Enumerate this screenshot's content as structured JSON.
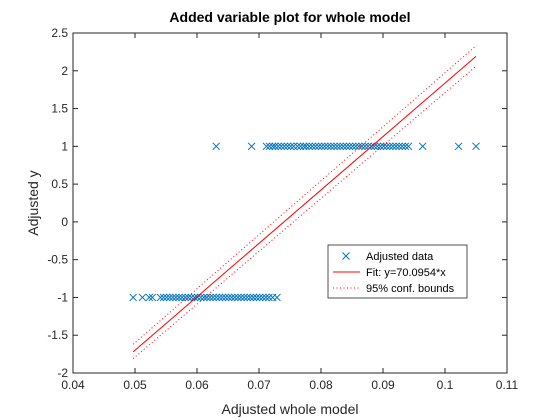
{
  "chart_data": {
    "type": "scatter",
    "title": "Added variable plot for whole model",
    "xlabel": "Adjusted whole model",
    "ylabel": "Adjusted y",
    "xlim": [
      0.04,
      0.11
    ],
    "ylim": [
      -2,
      2.5
    ],
    "xticks": [
      "0.04",
      "0.05",
      "0.06",
      "0.07",
      "0.08",
      "0.09",
      "0.1",
      "0.11"
    ],
    "yticks": [
      "-2",
      "-1.5",
      "-1",
      "-0.5",
      "0",
      "0.5",
      "1",
      "1.5",
      "2",
      "2.5"
    ],
    "grid": false,
    "legend_position": "lower-right",
    "series": [
      {
        "name": "Adjusted data",
        "kind": "scatter",
        "marker": "x",
        "color": "#0072BD",
        "points": [
          [
            0.0631,
            1
          ],
          [
            0.0688,
            1
          ],
          [
            0.0712,
            1
          ],
          [
            0.0717,
            1
          ],
          [
            0.0722,
            1
          ],
          [
            0.0726,
            1
          ],
          [
            0.0731,
            1
          ],
          [
            0.0736,
            1
          ],
          [
            0.0741,
            1
          ],
          [
            0.0746,
            1
          ],
          [
            0.0751,
            1
          ],
          [
            0.0756,
            1
          ],
          [
            0.0762,
            1
          ],
          [
            0.0767,
            1
          ],
          [
            0.0772,
            1
          ],
          [
            0.0776,
            1
          ],
          [
            0.0781,
            1
          ],
          [
            0.0786,
            1
          ],
          [
            0.0791,
            1
          ],
          [
            0.0796,
            1
          ],
          [
            0.0801,
            1
          ],
          [
            0.0806,
            1
          ],
          [
            0.0811,
            1
          ],
          [
            0.0816,
            1
          ],
          [
            0.0821,
            1
          ],
          [
            0.0826,
            1
          ],
          [
            0.0831,
            1
          ],
          [
            0.0836,
            1
          ],
          [
            0.0841,
            1
          ],
          [
            0.0846,
            1
          ],
          [
            0.0851,
            1
          ],
          [
            0.0856,
            1
          ],
          [
            0.0861,
            1
          ],
          [
            0.0866,
            1
          ],
          [
            0.0871,
            1
          ],
          [
            0.0876,
            1
          ],
          [
            0.0881,
            1
          ],
          [
            0.0886,
            1
          ],
          [
            0.0891,
            1
          ],
          [
            0.0896,
            1
          ],
          [
            0.0901,
            1
          ],
          [
            0.0906,
            1
          ],
          [
            0.0911,
            1
          ],
          [
            0.0916,
            1
          ],
          [
            0.0921,
            1
          ],
          [
            0.0926,
            1
          ],
          [
            0.0931,
            1
          ],
          [
            0.0936,
            1
          ],
          [
            0.0941,
            1
          ],
          [
            0.0964,
            1
          ],
          [
            0.1022,
            1
          ],
          [
            0.105,
            1
          ],
          [
            0.0497,
            -1
          ],
          [
            0.0512,
            -1
          ],
          [
            0.0523,
            -1
          ],
          [
            0.0528,
            -1
          ],
          [
            0.0541,
            -1
          ],
          [
            0.0546,
            -1
          ],
          [
            0.0551,
            -1
          ],
          [
            0.0556,
            -1
          ],
          [
            0.0561,
            -1
          ],
          [
            0.0566,
            -1
          ],
          [
            0.0571,
            -1
          ],
          [
            0.0576,
            -1
          ],
          [
            0.0581,
            -1
          ],
          [
            0.0586,
            -1
          ],
          [
            0.0591,
            -1
          ],
          [
            0.0596,
            -1
          ],
          [
            0.0601,
            -1
          ],
          [
            0.0606,
            -1
          ],
          [
            0.0611,
            -1
          ],
          [
            0.0616,
            -1
          ],
          [
            0.0621,
            -1
          ],
          [
            0.0626,
            -1
          ],
          [
            0.0631,
            -1
          ],
          [
            0.0636,
            -1
          ],
          [
            0.0641,
            -1
          ],
          [
            0.0646,
            -1
          ],
          [
            0.0651,
            -1
          ],
          [
            0.0656,
            -1
          ],
          [
            0.0661,
            -1
          ],
          [
            0.0666,
            -1
          ],
          [
            0.0671,
            -1
          ],
          [
            0.0676,
            -1
          ],
          [
            0.0681,
            -1
          ],
          [
            0.0686,
            -1
          ],
          [
            0.0691,
            -1
          ],
          [
            0.0696,
            -1
          ],
          [
            0.0701,
            -1
          ],
          [
            0.0706,
            -1
          ],
          [
            0.0711,
            -1
          ],
          [
            0.0716,
            -1
          ],
          [
            0.0722,
            -1
          ],
          [
            0.0729,
            -1
          ]
        ]
      },
      {
        "name": "Fit: y=70.0954*x",
        "kind": "line",
        "color": "#FF0000",
        "dash": "solid",
        "points": [
          [
            0.0497,
            -1.72
          ],
          [
            0.105,
            2.19
          ]
        ]
      },
      {
        "name": "95% conf. bounds",
        "kind": "line",
        "color": "#FF0000",
        "dash": "dotted",
        "points": [
          [
            0.0497,
            -1.62
          ],
          [
            0.105,
            2.33
          ]
        ]
      },
      {
        "name": "",
        "kind": "line",
        "color": "#FF0000",
        "dash": "dotted",
        "points": [
          [
            0.0497,
            -1.81
          ],
          [
            0.105,
            2.06
          ]
        ]
      }
    ],
    "legend": [
      "Adjusted data",
      "Fit: y=70.0954*x",
      "95% conf. bounds"
    ]
  }
}
